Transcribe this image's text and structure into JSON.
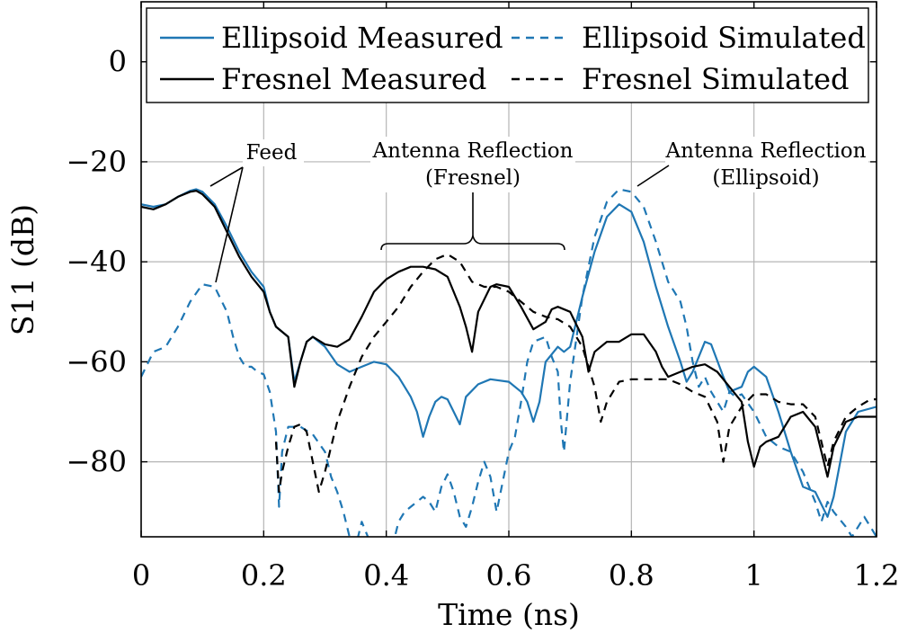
{
  "chart_data": {
    "type": "line",
    "xlabel": "Time (ns)",
    "ylabel": "S11 (dB)",
    "xlim": [
      0,
      1.2
    ],
    "ylim": [
      -95,
      12
    ],
    "x_ticks": [
      {
        "value": 0,
        "label": "0"
      },
      {
        "value": 0.2,
        "label": "0.2"
      },
      {
        "value": 0.4,
        "label": "0.4"
      },
      {
        "value": 0.6,
        "label": "0.6"
      },
      {
        "value": 0.8,
        "label": "0.8"
      },
      {
        "value": 1.0,
        "label": "1"
      },
      {
        "value": 1.2,
        "label": "1.2"
      }
    ],
    "y_ticks": [
      {
        "value": 0,
        "label": "0"
      },
      {
        "value": -20,
        "label": "−20"
      },
      {
        "value": -40,
        "label": "−40"
      },
      {
        "value": -60,
        "label": "−60"
      },
      {
        "value": -80,
        "label": "−80"
      }
    ],
    "grid": true,
    "legend_position": "top",
    "series": [
      {
        "name": "Ellipsoid Measured",
        "color": "#1f77b4",
        "dash": "solid",
        "points": [
          [
            0,
            -28.5
          ],
          [
            0.02,
            -29
          ],
          [
            0.04,
            -28.5
          ],
          [
            0.06,
            -27
          ],
          [
            0.08,
            -25.8
          ],
          [
            0.09,
            -25.5
          ],
          [
            0.1,
            -26
          ],
          [
            0.12,
            -28.5
          ],
          [
            0.14,
            -33
          ],
          [
            0.16,
            -38
          ],
          [
            0.18,
            -42
          ],
          [
            0.2,
            -45
          ],
          [
            0.21,
            -50
          ],
          [
            0.22,
            -53
          ],
          [
            0.24,
            -55
          ],
          [
            0.25,
            -64
          ],
          [
            0.26,
            -60
          ],
          [
            0.27,
            -56
          ],
          [
            0.28,
            -55
          ],
          [
            0.3,
            -57
          ],
          [
            0.32,
            -60.5
          ],
          [
            0.34,
            -62
          ],
          [
            0.36,
            -61
          ],
          [
            0.38,
            -60
          ],
          [
            0.4,
            -60.5
          ],
          [
            0.42,
            -63
          ],
          [
            0.44,
            -67
          ],
          [
            0.45,
            -70
          ],
          [
            0.46,
            -75
          ],
          [
            0.47,
            -71
          ],
          [
            0.48,
            -68
          ],
          [
            0.49,
            -67
          ],
          [
            0.5,
            -67.5
          ],
          [
            0.51,
            -70
          ],
          [
            0.52,
            -72.5
          ],
          [
            0.53,
            -67
          ],
          [
            0.55,
            -64.5
          ],
          [
            0.57,
            -63.5
          ],
          [
            0.6,
            -64
          ],
          [
            0.62,
            -66
          ],
          [
            0.63,
            -68
          ],
          [
            0.64,
            -72
          ],
          [
            0.65,
            -68
          ],
          [
            0.66,
            -60
          ],
          [
            0.68,
            -57
          ],
          [
            0.69,
            -58
          ],
          [
            0.7,
            -57
          ],
          [
            0.72,
            -47
          ],
          [
            0.74,
            -38
          ],
          [
            0.76,
            -31
          ],
          [
            0.78,
            -28.5
          ],
          [
            0.8,
            -30
          ],
          [
            0.82,
            -36
          ],
          [
            0.84,
            -45
          ],
          [
            0.86,
            -53
          ],
          [
            0.88,
            -60
          ],
          [
            0.89,
            -64
          ],
          [
            0.9,
            -62
          ],
          [
            0.92,
            -56
          ],
          [
            0.93,
            -56.5
          ],
          [
            0.95,
            -63
          ],
          [
            0.96,
            -66
          ],
          [
            0.98,
            -65
          ],
          [
            0.99,
            -62
          ],
          [
            1.0,
            -61
          ],
          [
            1.02,
            -63
          ],
          [
            1.04,
            -70
          ],
          [
            1.06,
            -78
          ],
          [
            1.08,
            -85
          ],
          [
            1.1,
            -86
          ],
          [
            1.12,
            -91
          ],
          [
            1.13,
            -87
          ],
          [
            1.15,
            -74
          ],
          [
            1.17,
            -70
          ],
          [
            1.2,
            -69
          ]
        ]
      },
      {
        "name": "Ellipsoid Simulated",
        "color": "#1f77b4",
        "dash": "dashed",
        "points": [
          [
            0,
            -63
          ],
          [
            0.02,
            -58
          ],
          [
            0.04,
            -57
          ],
          [
            0.06,
            -53
          ],
          [
            0.08,
            -48
          ],
          [
            0.1,
            -44.5
          ],
          [
            0.12,
            -45
          ],
          [
            0.14,
            -50
          ],
          [
            0.15,
            -55
          ],
          [
            0.16,
            -59
          ],
          [
            0.17,
            -61
          ],
          [
            0.18,
            -61
          ],
          [
            0.19,
            -62
          ],
          [
            0.2,
            -62.5
          ],
          [
            0.21,
            -66
          ],
          [
            0.22,
            -74
          ],
          [
            0.225,
            -89
          ],
          [
            0.23,
            -78
          ],
          [
            0.24,
            -73
          ],
          [
            0.26,
            -73
          ],
          [
            0.28,
            -74.5
          ],
          [
            0.3,
            -78
          ],
          [
            0.31,
            -83
          ],
          [
            0.32,
            -86
          ],
          [
            0.33,
            -90
          ],
          [
            0.34,
            -95
          ],
          [
            0.35,
            -97
          ],
          [
            0.36,
            -92
          ],
          [
            0.37,
            -95
          ],
          [
            0.38,
            -96
          ],
          [
            0.39,
            -98
          ],
          [
            0.4,
            -99
          ],
          [
            0.41,
            -97
          ],
          [
            0.42,
            -92
          ],
          [
            0.43,
            -90
          ],
          [
            0.44,
            -89
          ],
          [
            0.45,
            -88
          ],
          [
            0.46,
            -87
          ],
          [
            0.47,
            -88
          ],
          [
            0.48,
            -90
          ],
          [
            0.49,
            -85
          ],
          [
            0.5,
            -82.5
          ],
          [
            0.51,
            -86
          ],
          [
            0.52,
            -91
          ],
          [
            0.53,
            -93
          ],
          [
            0.54,
            -89
          ],
          [
            0.55,
            -84
          ],
          [
            0.56,
            -80
          ],
          [
            0.57,
            -83
          ],
          [
            0.58,
            -90
          ],
          [
            0.59,
            -84
          ],
          [
            0.6,
            -78
          ],
          [
            0.61,
            -75
          ],
          [
            0.62,
            -68
          ],
          [
            0.63,
            -60
          ],
          [
            0.64,
            -56
          ],
          [
            0.66,
            -55
          ],
          [
            0.67,
            -59
          ],
          [
            0.68,
            -62
          ],
          [
            0.685,
            -72
          ],
          [
            0.69,
            -78
          ],
          [
            0.7,
            -64
          ],
          [
            0.72,
            -47
          ],
          [
            0.74,
            -35
          ],
          [
            0.76,
            -28
          ],
          [
            0.78,
            -25.5
          ],
          [
            0.8,
            -26
          ],
          [
            0.82,
            -29
          ],
          [
            0.84,
            -36
          ],
          [
            0.86,
            -44
          ],
          [
            0.88,
            -48
          ],
          [
            0.89,
            -53
          ],
          [
            0.9,
            -60
          ],
          [
            0.91,
            -65
          ],
          [
            0.92,
            -63
          ],
          [
            0.93,
            -66
          ],
          [
            0.95,
            -70
          ],
          [
            0.96,
            -66
          ],
          [
            0.97,
            -67
          ],
          [
            0.98,
            -66.5
          ],
          [
            1.0,
            -70
          ],
          [
            1.02,
            -75
          ],
          [
            1.04,
            -77
          ],
          [
            1.06,
            -78
          ],
          [
            1.08,
            -82
          ],
          [
            1.1,
            -88
          ],
          [
            1.11,
            -92
          ],
          [
            1.12,
            -88
          ],
          [
            1.13,
            -90
          ],
          [
            1.15,
            -93
          ],
          [
            1.16,
            -95
          ],
          [
            1.17,
            -93
          ],
          [
            1.18,
            -91
          ],
          [
            1.19,
            -93
          ],
          [
            1.2,
            -95
          ]
        ]
      },
      {
        "name": "Fresnel Measured",
        "color": "#000000",
        "dash": "solid",
        "points": [
          [
            0,
            -29
          ],
          [
            0.02,
            -29.5
          ],
          [
            0.04,
            -28.5
          ],
          [
            0.06,
            -27
          ],
          [
            0.08,
            -26
          ],
          [
            0.09,
            -25.8
          ],
          [
            0.1,
            -26.5
          ],
          [
            0.12,
            -29
          ],
          [
            0.14,
            -34
          ],
          [
            0.16,
            -39
          ],
          [
            0.18,
            -43
          ],
          [
            0.2,
            -46
          ],
          [
            0.21,
            -50
          ],
          [
            0.22,
            -53
          ],
          [
            0.24,
            -55
          ],
          [
            0.25,
            -65
          ],
          [
            0.26,
            -60
          ],
          [
            0.27,
            -56
          ],
          [
            0.28,
            -55
          ],
          [
            0.3,
            -56.5
          ],
          [
            0.32,
            -57
          ],
          [
            0.34,
            -55.5
          ],
          [
            0.36,
            -51
          ],
          [
            0.38,
            -46
          ],
          [
            0.4,
            -43.5
          ],
          [
            0.42,
            -42
          ],
          [
            0.44,
            -41
          ],
          [
            0.46,
            -41
          ],
          [
            0.48,
            -41.5
          ],
          [
            0.5,
            -43
          ],
          [
            0.52,
            -49
          ],
          [
            0.53,
            -53
          ],
          [
            0.54,
            -58
          ],
          [
            0.55,
            -50
          ],
          [
            0.57,
            -45
          ],
          [
            0.58,
            -44.5
          ],
          [
            0.6,
            -45
          ],
          [
            0.62,
            -49
          ],
          [
            0.64,
            -53.5
          ],
          [
            0.66,
            -52
          ],
          [
            0.67,
            -49.5
          ],
          [
            0.68,
            -49
          ],
          [
            0.7,
            -50
          ],
          [
            0.72,
            -55
          ],
          [
            0.73,
            -62
          ],
          [
            0.74,
            -58
          ],
          [
            0.76,
            -56
          ],
          [
            0.78,
            -56
          ],
          [
            0.8,
            -54.5
          ],
          [
            0.82,
            -54.5
          ],
          [
            0.84,
            -58
          ],
          [
            0.85,
            -61
          ],
          [
            0.86,
            -63
          ],
          [
            0.88,
            -62
          ],
          [
            0.9,
            -61
          ],
          [
            0.92,
            -60.5
          ],
          [
            0.94,
            -62
          ],
          [
            0.96,
            -65
          ],
          [
            0.98,
            -68
          ],
          [
            0.99,
            -76
          ],
          [
            1.0,
            -81
          ],
          [
            1.01,
            -77
          ],
          [
            1.02,
            -76
          ],
          [
            1.04,
            -75
          ],
          [
            1.06,
            -71
          ],
          [
            1.08,
            -70
          ],
          [
            1.1,
            -73
          ],
          [
            1.11,
            -78
          ],
          [
            1.12,
            -83
          ],
          [
            1.13,
            -77
          ],
          [
            1.15,
            -72
          ],
          [
            1.17,
            -71
          ],
          [
            1.2,
            -71
          ]
        ]
      },
      {
        "name": "Fresnel Simulated",
        "color": "#000000",
        "dash": "dashed",
        "points": [
          [
            0.22,
            -76
          ],
          [
            0.225,
            -86
          ],
          [
            0.23,
            -82
          ],
          [
            0.24,
            -77
          ],
          [
            0.25,
            -73
          ],
          [
            0.26,
            -72.5
          ],
          [
            0.27,
            -74
          ],
          [
            0.28,
            -80
          ],
          [
            0.29,
            -86
          ],
          [
            0.3,
            -82
          ],
          [
            0.31,
            -77
          ],
          [
            0.32,
            -72
          ],
          [
            0.34,
            -65
          ],
          [
            0.36,
            -59
          ],
          [
            0.38,
            -55
          ],
          [
            0.4,
            -52
          ],
          [
            0.42,
            -49
          ],
          [
            0.44,
            -45
          ],
          [
            0.46,
            -42
          ],
          [
            0.48,
            -39.5
          ],
          [
            0.5,
            -38.5
          ],
          [
            0.52,
            -40
          ],
          [
            0.54,
            -44
          ],
          [
            0.56,
            -45
          ],
          [
            0.58,
            -45
          ],
          [
            0.6,
            -46
          ],
          [
            0.62,
            -48
          ],
          [
            0.64,
            -50
          ],
          [
            0.66,
            -51
          ],
          [
            0.68,
            -51.5
          ],
          [
            0.7,
            -53
          ],
          [
            0.72,
            -57
          ],
          [
            0.74,
            -65
          ],
          [
            0.75,
            -72
          ],
          [
            0.76,
            -68
          ],
          [
            0.77,
            -66
          ],
          [
            0.78,
            -64
          ],
          [
            0.8,
            -63.5
          ],
          [
            0.82,
            -63.5
          ],
          [
            0.84,
            -63.5
          ],
          [
            0.86,
            -63.5
          ],
          [
            0.88,
            -64.5
          ],
          [
            0.9,
            -66
          ],
          [
            0.92,
            -67
          ],
          [
            0.94,
            -72
          ],
          [
            0.95,
            -80
          ],
          [
            0.96,
            -73
          ],
          [
            0.98,
            -69
          ],
          [
            1.0,
            -66.5
          ],
          [
            1.02,
            -66.5
          ],
          [
            1.04,
            -68
          ],
          [
            1.06,
            -68.5
          ],
          [
            1.08,
            -68.5
          ],
          [
            1.1,
            -71
          ],
          [
            1.12,
            -81
          ],
          [
            1.13,
            -76
          ],
          [
            1.15,
            -71
          ],
          [
            1.17,
            -69
          ],
          [
            1.19,
            -67.5
          ],
          [
            1.2,
            -67.5
          ]
        ]
      }
    ],
    "annotations": {
      "feed": {
        "label": "Feed"
      },
      "fresnel": {
        "line1": "Antenna Reflection",
        "line2": "(Fresnel)"
      },
      "ellipsoid": {
        "line1": "Antenna Reflection",
        "line2": "(Ellipsoid)"
      }
    }
  }
}
